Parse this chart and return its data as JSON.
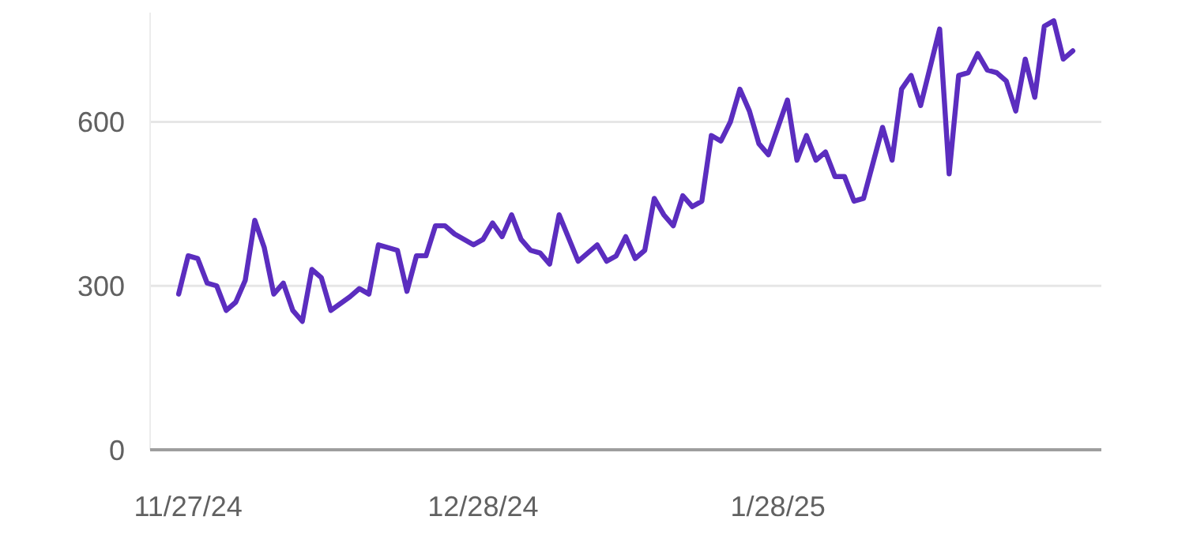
{
  "chart_data": {
    "type": "line",
    "x": [
      "2024-11-26",
      "2024-11-27",
      "2024-11-28",
      "2024-11-29",
      "2024-11-30",
      "2024-12-01",
      "2024-12-02",
      "2024-12-03",
      "2024-12-04",
      "2024-12-05",
      "2024-12-06",
      "2024-12-07",
      "2024-12-08",
      "2024-12-09",
      "2024-12-10",
      "2024-12-11",
      "2024-12-12",
      "2024-12-14",
      "2024-12-15",
      "2024-12-16",
      "2024-12-17",
      "2024-12-18",
      "2024-12-19",
      "2024-12-20",
      "2024-12-21",
      "2024-12-22",
      "2024-12-23",
      "2024-12-24",
      "2024-12-25",
      "2024-12-27",
      "2024-12-28",
      "2024-12-29",
      "2024-12-30",
      "2024-12-31",
      "2025-01-01",
      "2025-01-02",
      "2025-01-03",
      "2025-01-04",
      "2025-01-05",
      "2025-01-07",
      "2025-01-09",
      "2025-01-10",
      "2025-01-11",
      "2025-01-12",
      "2025-01-13",
      "2025-01-14",
      "2025-01-15",
      "2025-01-16",
      "2025-01-17",
      "2025-01-18",
      "2025-01-19",
      "2025-01-20",
      "2025-01-21",
      "2025-01-22",
      "2025-01-23",
      "2025-01-24",
      "2025-01-25",
      "2025-01-26",
      "2025-01-27",
      "2025-01-29",
      "2025-01-30",
      "2025-01-31",
      "2025-02-01",
      "2025-02-02",
      "2025-02-03",
      "2025-02-04",
      "2025-02-05",
      "2025-02-06",
      "2025-02-08",
      "2025-02-09",
      "2025-02-10",
      "2025-02-11",
      "2025-02-12",
      "2025-02-14",
      "2025-02-15",
      "2025-02-16",
      "2025-02-17",
      "2025-02-18",
      "2025-02-19",
      "2025-02-20",
      "2025-02-21",
      "2025-02-22",
      "2025-02-23",
      "2025-02-24",
      "2025-02-25",
      "2025-02-26",
      "2025-02-27",
      "2025-02-28"
    ],
    "series": [
      {
        "color": "#5b2dbf",
        "values": [
          285,
          355,
          350,
          305,
          300,
          255,
          270,
          310,
          420,
          370,
          285,
          305,
          255,
          235,
          330,
          315,
          255,
          280,
          295,
          285,
          375,
          370,
          365,
          290,
          355,
          355,
          410,
          410,
          395,
          375,
          385,
          415,
          390,
          430,
          385,
          365,
          360,
          340,
          430,
          345,
          375,
          345,
          355,
          390,
          350,
          365,
          460,
          430,
          410,
          465,
          445,
          455,
          575,
          565,
          600,
          660,
          620,
          560,
          540,
          640,
          530,
          575,
          530,
          545,
          500,
          500,
          455,
          460,
          590,
          530,
          660,
          685,
          630,
          770,
          505,
          685,
          690,
          725,
          695,
          690,
          675,
          620,
          715,
          645,
          775,
          785,
          715,
          730
        ]
      }
    ],
    "xlim": [
      "2024-11-23",
      "2025-03-03"
    ],
    "xticks": [
      {
        "value": "2024-11-27",
        "label": "11/27/24"
      },
      {
        "value": "2024-12-28",
        "label": "12/28/24"
      },
      {
        "value": "2025-01-28",
        "label": "1/28/25"
      }
    ],
    "ylim": [
      0,
      800
    ],
    "yticks": [
      0,
      300,
      600
    ],
    "grid": "y",
    "marker": "none",
    "line_style": "solid"
  }
}
